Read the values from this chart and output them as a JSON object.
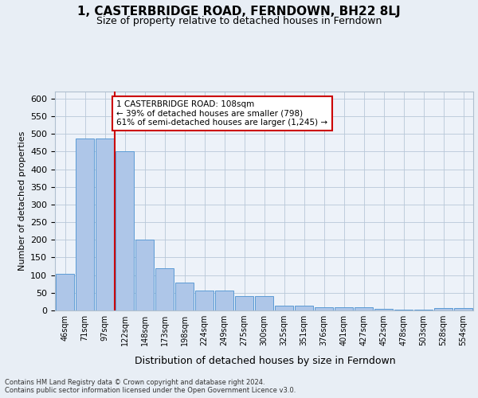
{
  "title": "1, CASTERBRIDGE ROAD, FERNDOWN, BH22 8LJ",
  "subtitle": "Size of property relative to detached houses in Ferndown",
  "xlabel": "Distribution of detached houses by size in Ferndown",
  "ylabel": "Number of detached properties",
  "bar_labels": [
    "46sqm",
    "71sqm",
    "97sqm",
    "122sqm",
    "148sqm",
    "173sqm",
    "198sqm",
    "224sqm",
    "249sqm",
    "275sqm",
    "300sqm",
    "325sqm",
    "351sqm",
    "376sqm",
    "401sqm",
    "427sqm",
    "452sqm",
    "478sqm",
    "503sqm",
    "528sqm",
    "554sqm"
  ],
  "bar_values": [
    103,
    487,
    487,
    450,
    200,
    120,
    80,
    57,
    57,
    40,
    40,
    14,
    14,
    10,
    10,
    10,
    5,
    3,
    3,
    7,
    7
  ],
  "bar_color": "#aec6e8",
  "bar_edge_color": "#5b9bd5",
  "red_line_index": 2.5,
  "annotation_text": "1 CASTERBRIDGE ROAD: 108sqm\n← 39% of detached houses are smaller (798)\n61% of semi-detached houses are larger (1,245) →",
  "annotation_box_color": "#ffffff",
  "annotation_box_edge": "#cc0000",
  "red_line_color": "#cc0000",
  "ylim": [
    0,
    620
  ],
  "yticks": [
    0,
    50,
    100,
    150,
    200,
    250,
    300,
    350,
    400,
    450,
    500,
    550,
    600
  ],
  "footer": "Contains HM Land Registry data © Crown copyright and database right 2024.\nContains public sector information licensed under the Open Government Licence v3.0.",
  "bg_color": "#e8eef5",
  "plot_bg_color": "#edf2f9"
}
